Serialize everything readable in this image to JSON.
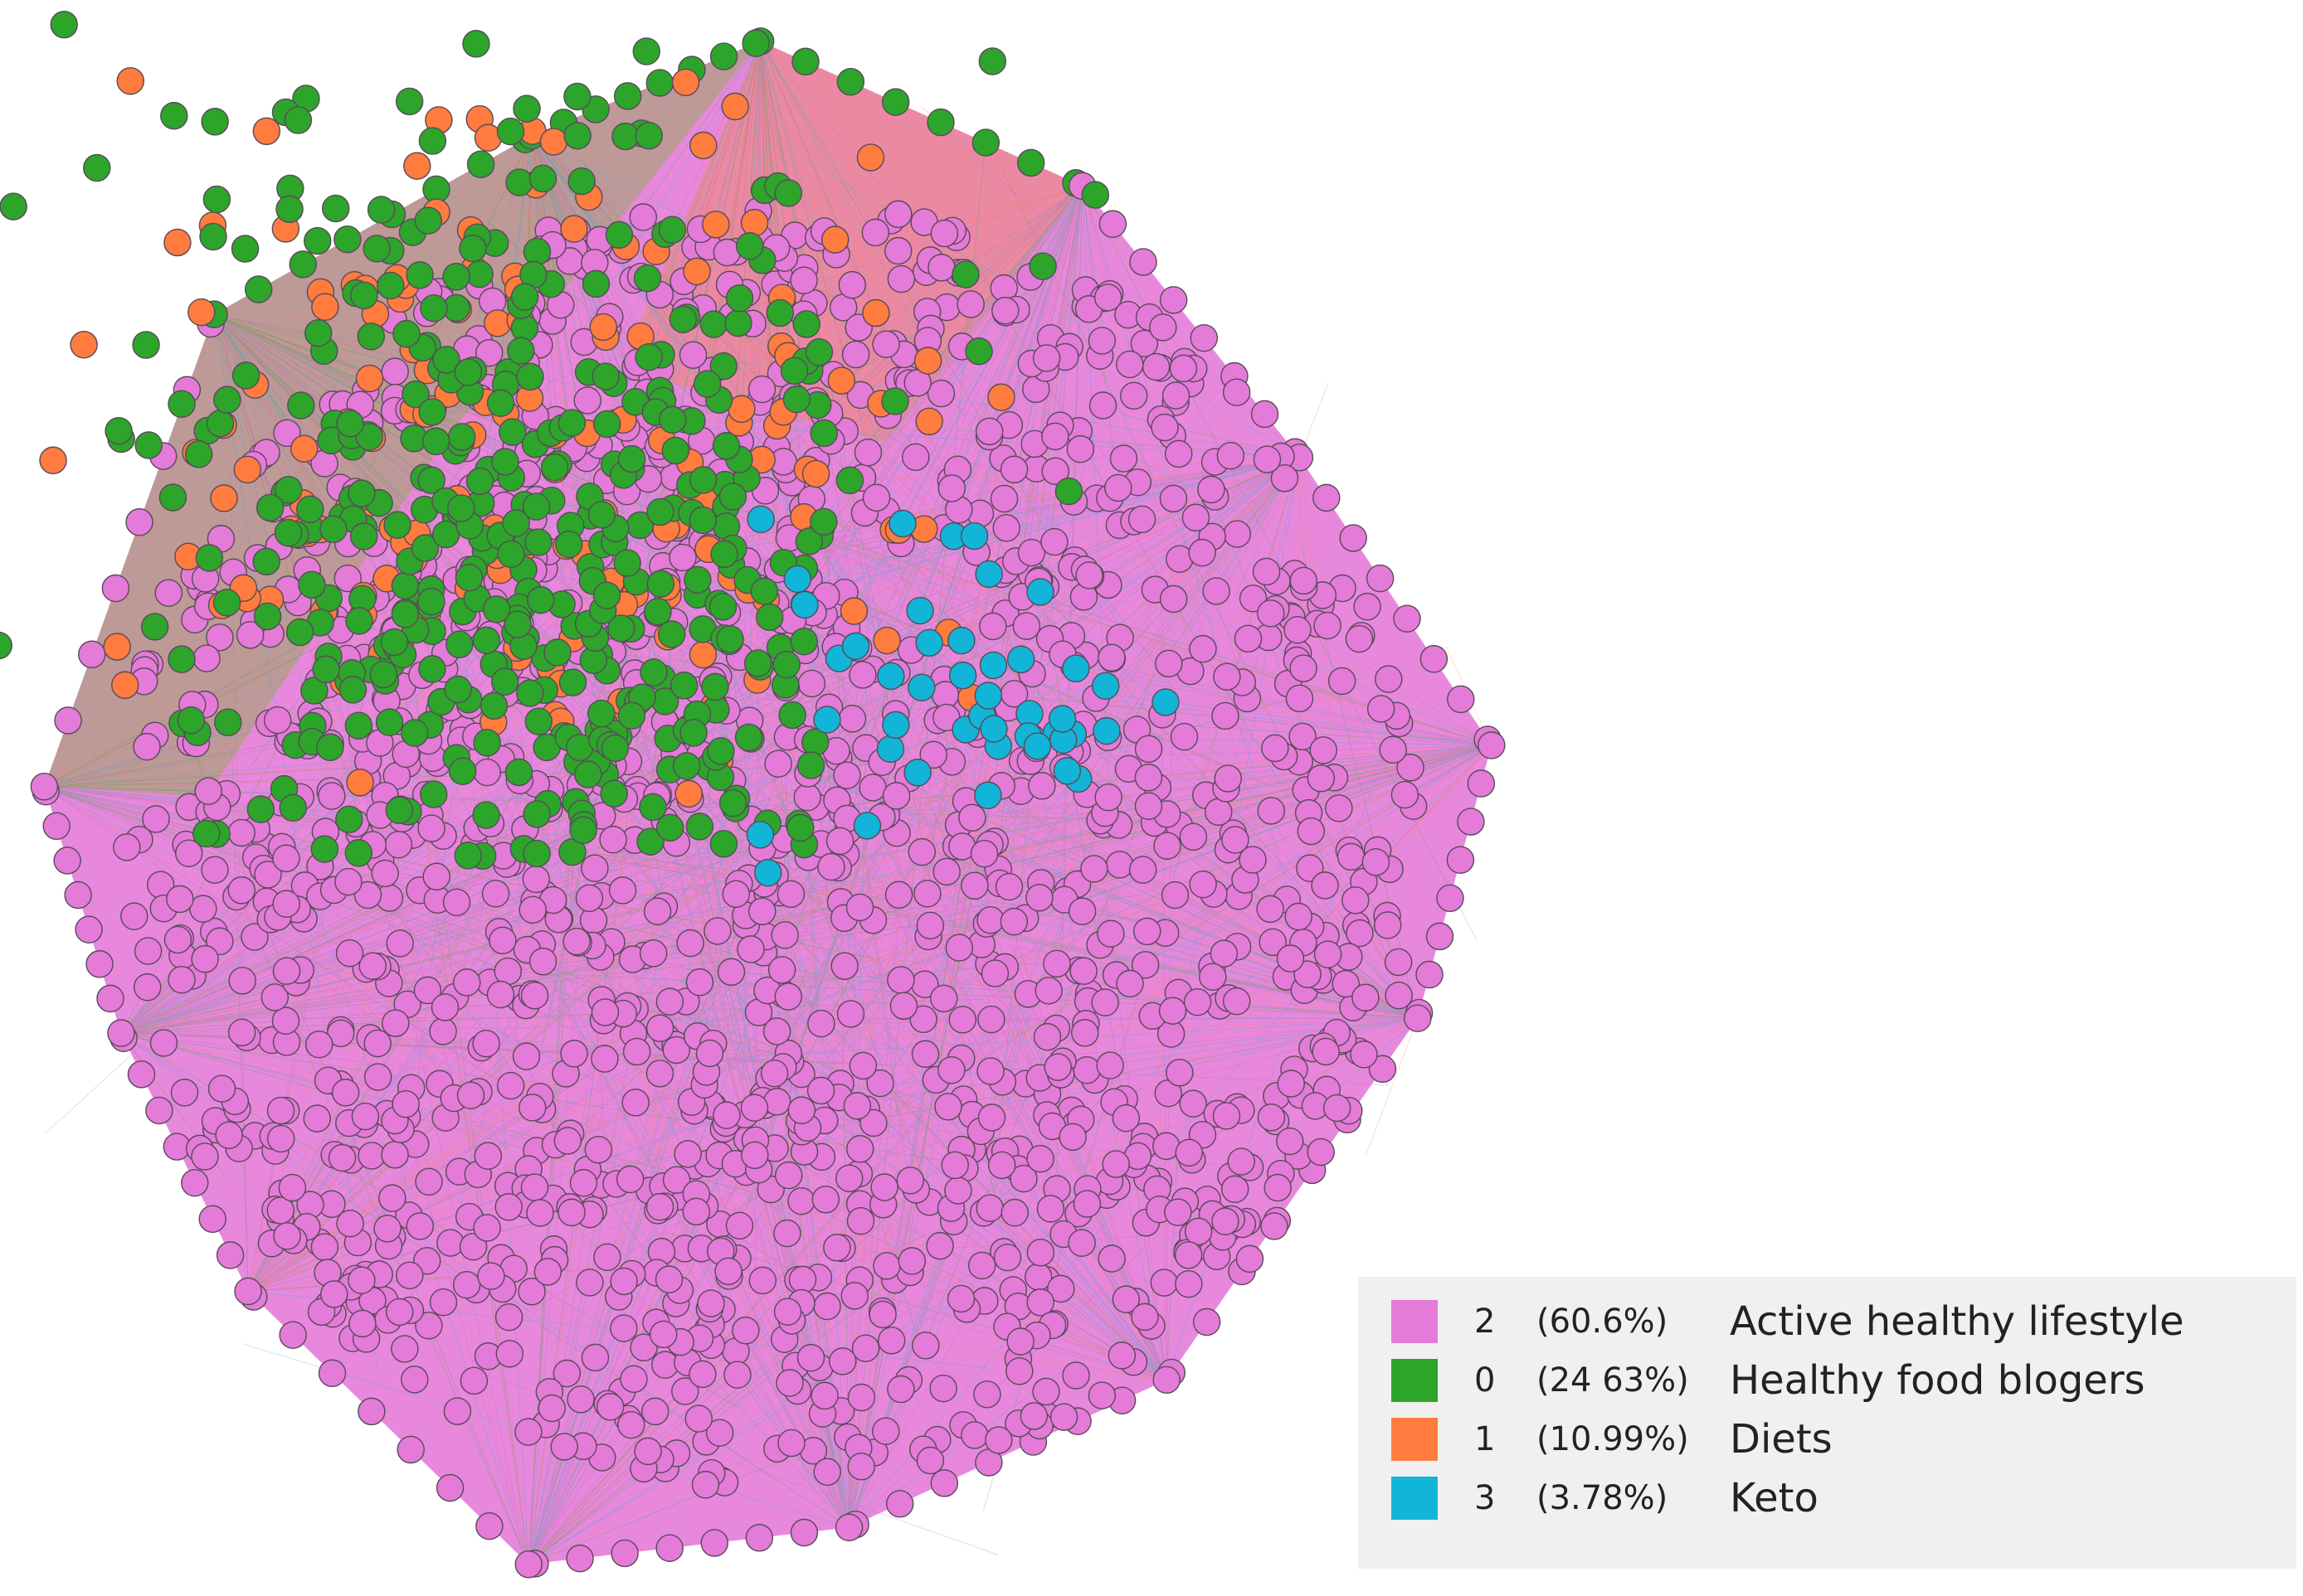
{
  "legend": {
    "items": [
      {
        "id": "2",
        "share": "(60.6%)",
        "label": "Active healthy lifestyle",
        "color": "#e47bd8"
      },
      {
        "id": "0",
        "share": "(24 63%)",
        "label": "Healthy food blogers",
        "color": "#2ca52a"
      },
      {
        "id": "1",
        "share": "(10.99%)",
        "label": "Diets",
        "color": "#ff7c3e"
      },
      {
        "id": "3",
        "share": "(3.78%)",
        "label": "Keto",
        "color": "#12b4d8"
      }
    ]
  }
}
